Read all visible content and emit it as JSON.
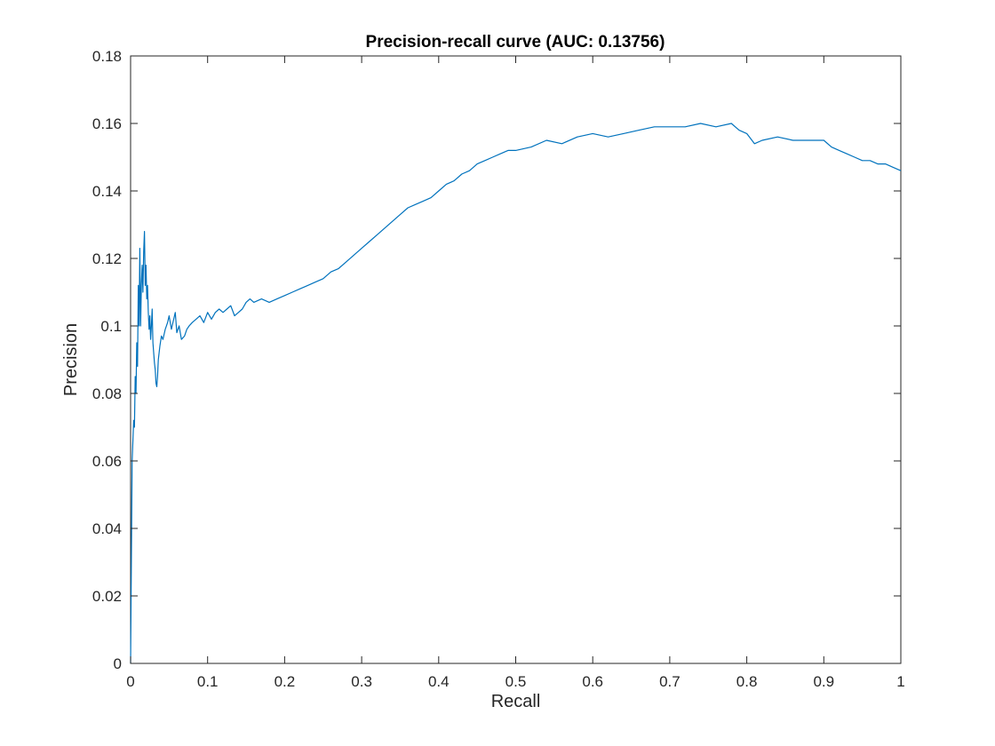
{
  "chart_data": {
    "type": "line",
    "title": "Precision-recall curve (AUC: 0.13756)",
    "xlabel": "Recall",
    "ylabel": "Precision",
    "xlim": [
      0,
      1
    ],
    "ylim": [
      0,
      0.18
    ],
    "grid": false,
    "x_ticks": [
      0,
      0.1,
      0.2,
      0.3,
      0.4,
      0.5,
      0.6,
      0.7,
      0.8,
      0.9,
      1
    ],
    "y_ticks": [
      0,
      0.02,
      0.04,
      0.06,
      0.08,
      0.1,
      0.12,
      0.14,
      0.16,
      0.18
    ],
    "x_tick_labels": [
      "0",
      "0.1",
      "0.2",
      "0.3",
      "0.4",
      "0.5",
      "0.6",
      "0.7",
      "0.8",
      "0.9",
      "1"
    ],
    "y_tick_labels": [
      "0",
      "0.02",
      "0.04",
      "0.06",
      "0.08",
      "0.1",
      "0.12",
      "0.14",
      "0.16",
      "0.18"
    ],
    "colors": {
      "line": "#0072BD",
      "axis": "#262626"
    },
    "series": [
      {
        "x": [
          0,
          0.002,
          0.004,
          0.005,
          0.006,
          0.007,
          0.008,
          0.009,
          0.01,
          0.011,
          0.012,
          0.013,
          0.014,
          0.015,
          0.016,
          0.017,
          0.018,
          0.019,
          0.02,
          0.021,
          0.022,
          0.023,
          0.024,
          0.025,
          0.026,
          0.027,
          0.028,
          0.029,
          0.03,
          0.031,
          0.032,
          0.033,
          0.034,
          0.035,
          0.036,
          0.038,
          0.04,
          0.042,
          0.045,
          0.048,
          0.05,
          0.053,
          0.056,
          0.058,
          0.06,
          0.063,
          0.066,
          0.07,
          0.073,
          0.076,
          0.08,
          0.085,
          0.09,
          0.095,
          0.1,
          0.105,
          0.11,
          0.115,
          0.12,
          0.125,
          0.13,
          0.135,
          0.14,
          0.145,
          0.15,
          0.155,
          0.16,
          0.17,
          0.18,
          0.19,
          0.2,
          0.21,
          0.22,
          0.23,
          0.24,
          0.25,
          0.26,
          0.27,
          0.28,
          0.29,
          0.3,
          0.31,
          0.32,
          0.33,
          0.34,
          0.35,
          0.36,
          0.37,
          0.38,
          0.39,
          0.4,
          0.41,
          0.42,
          0.43,
          0.44,
          0.45,
          0.46,
          0.47,
          0.48,
          0.49,
          0.5,
          0.52,
          0.54,
          0.56,
          0.58,
          0.6,
          0.62,
          0.64,
          0.66,
          0.68,
          0.7,
          0.72,
          0.74,
          0.76,
          0.78,
          0.79,
          0.8,
          0.81,
          0.82,
          0.84,
          0.86,
          0.88,
          0.9,
          0.91,
          0.92,
          0.93,
          0.94,
          0.95,
          0.96,
          0.97,
          0.98,
          0.99,
          1.0
        ],
        "values": [
          0,
          0.06,
          0.072,
          0.07,
          0.085,
          0.08,
          0.095,
          0.088,
          0.112,
          0.1,
          0.123,
          0.1,
          0.112,
          0.118,
          0.11,
          0.122,
          0.128,
          0.112,
          0.118,
          0.108,
          0.112,
          0.104,
          0.099,
          0.103,
          0.096,
          0.1,
          0.105,
          0.095,
          0.092,
          0.089,
          0.087,
          0.083,
          0.082,
          0.085,
          0.09,
          0.094,
          0.097,
          0.096,
          0.099,
          0.101,
          0.103,
          0.099,
          0.102,
          0.104,
          0.098,
          0.1,
          0.096,
          0.097,
          0.099,
          0.1,
          0.101,
          0.102,
          0.103,
          0.101,
          0.104,
          0.102,
          0.104,
          0.105,
          0.104,
          0.105,
          0.106,
          0.103,
          0.104,
          0.105,
          0.107,
          0.108,
          0.107,
          0.108,
          0.107,
          0.108,
          0.109,
          0.11,
          0.111,
          0.112,
          0.113,
          0.114,
          0.116,
          0.117,
          0.119,
          0.121,
          0.123,
          0.125,
          0.127,
          0.129,
          0.131,
          0.133,
          0.135,
          0.136,
          0.137,
          0.138,
          0.14,
          0.142,
          0.143,
          0.145,
          0.146,
          0.148,
          0.149,
          0.15,
          0.151,
          0.152,
          0.152,
          0.153,
          0.155,
          0.154,
          0.156,
          0.157,
          0.156,
          0.157,
          0.158,
          0.159,
          0.159,
          0.159,
          0.16,
          0.159,
          0.16,
          0.158,
          0.157,
          0.154,
          0.155,
          0.156,
          0.155,
          0.155,
          0.155,
          0.153,
          0.152,
          0.151,
          0.15,
          0.149,
          0.149,
          0.148,
          0.148,
          0.147,
          0.146
        ]
      }
    ]
  }
}
